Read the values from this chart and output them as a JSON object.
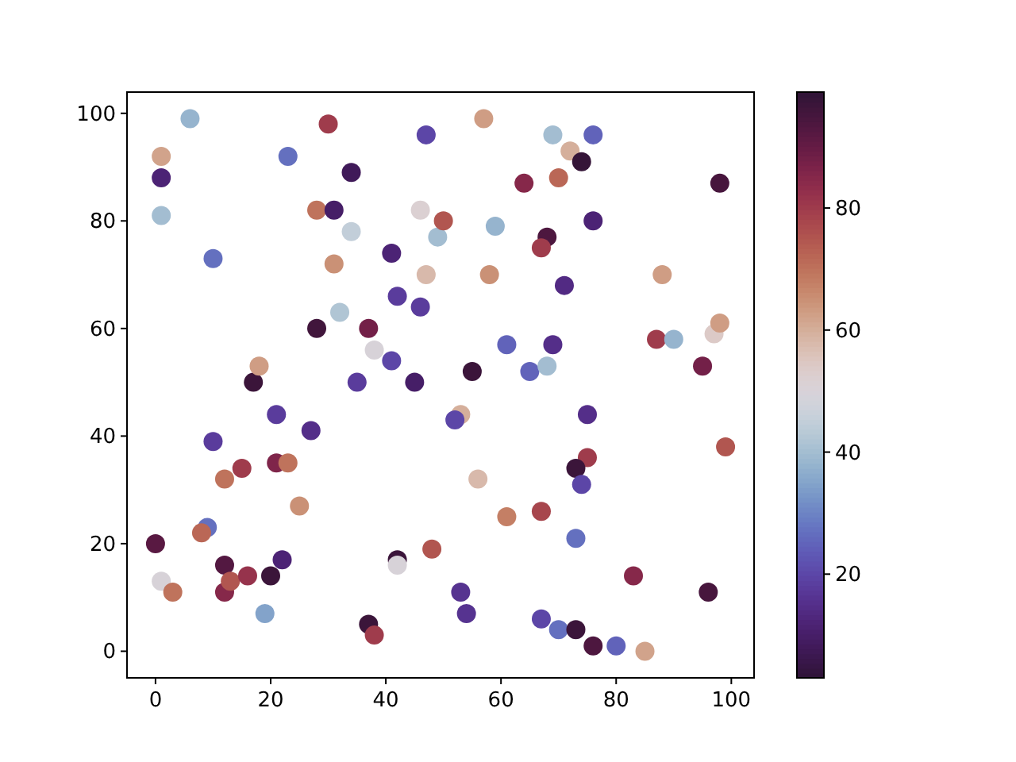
{
  "chart_data": {
    "type": "scatter",
    "marker": "circle",
    "xlim": [
      -4.95,
      103.95
    ],
    "ylim": [
      -4.95,
      103.95
    ],
    "xticks": [
      0,
      20,
      40,
      60,
      80,
      100
    ],
    "yticks": [
      0,
      20,
      40,
      60,
      80,
      100
    ],
    "clim": [
      3,
      99
    ],
    "cticks": [
      20,
      40,
      60,
      80
    ],
    "x": [
      0,
      1,
      3,
      1,
      1,
      1,
      6,
      10,
      10,
      9,
      8,
      12,
      15,
      12,
      12,
      13,
      16,
      17,
      18,
      19,
      20,
      21,
      21,
      23,
      22,
      25,
      27,
      23,
      30,
      28,
      31,
      34,
      28,
      31,
      34,
      32,
      37,
      38,
      35,
      41,
      42,
      41,
      46,
      45,
      47,
      46,
      47,
      49,
      50,
      55,
      53,
      52,
      56,
      48,
      42,
      42,
      37,
      38,
      53,
      54,
      57,
      69,
      76,
      72,
      74,
      64,
      70,
      98,
      58,
      59,
      68,
      67,
      76,
      71,
      61,
      69,
      65,
      68,
      88,
      87,
      90,
      97,
      98,
      95,
      99,
      61,
      67,
      75,
      73,
      74,
      73,
      67,
      70,
      73,
      76,
      80,
      85,
      83,
      96,
      75
    ],
    "values": [
      20,
      13,
      11,
      92,
      88,
      81,
      99,
      73,
      39,
      23,
      22,
      32,
      34,
      16,
      11,
      13,
      14,
      50,
      53,
      7,
      14,
      44,
      35,
      35,
      17,
      27,
      41,
      92,
      98,
      82,
      82,
      89,
      60,
      72,
      78,
      63,
      60,
      56,
      50,
      74,
      66,
      54,
      64,
      50,
      96,
      82,
      70,
      77,
      80,
      52,
      44,
      43,
      32,
      19,
      17,
      16,
      5,
      3,
      11,
      7,
      99,
      96,
      96,
      93,
      91,
      87,
      88,
      87,
      70,
      79,
      77,
      75,
      80,
      68,
      57,
      57,
      52,
      53,
      70,
      58,
      58,
      59,
      61,
      53,
      38,
      25,
      26,
      36,
      34,
      31,
      21,
      6,
      4,
      4,
      1,
      1,
      0,
      14,
      11,
      44
    ],
    "cvalues": [
      92,
      50,
      70,
      62,
      12,
      40,
      38,
      27,
      18,
      27,
      72,
      70,
      80,
      93,
      85,
      75,
      82,
      97,
      63,
      35,
      97,
      18,
      86,
      70,
      12,
      65,
      15,
      27,
      80,
      70,
      10,
      8,
      96,
      65,
      45,
      42,
      88,
      50,
      18,
      12,
      18,
      20,
      18,
      10,
      20,
      52,
      58,
      40,
      75,
      97,
      60,
      20,
      58,
      75,
      97,
      50,
      97,
      80,
      16,
      16,
      63,
      40,
      25,
      60,
      98,
      85,
      72,
      95,
      65,
      38,
      94,
      80,
      12,
      14,
      25,
      15,
      25,
      40,
      63,
      80,
      38,
      54,
      63,
      88,
      75,
      68,
      78,
      80,
      97,
      20,
      27,
      20,
      27,
      97,
      94,
      25,
      62,
      85,
      95,
      15
    ]
  }
}
